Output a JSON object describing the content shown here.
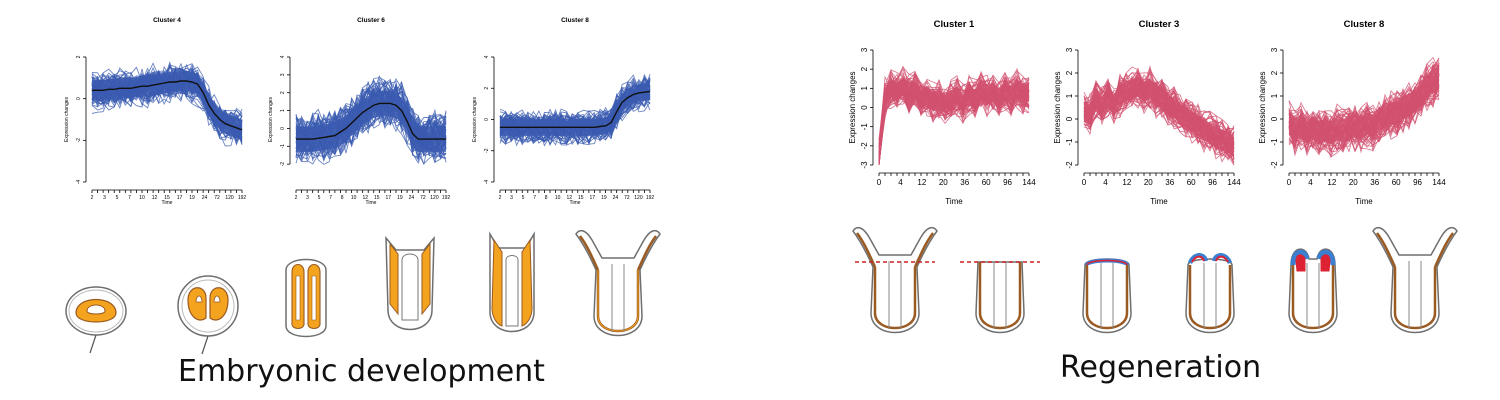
{
  "captions": {
    "left": "Embryonic development",
    "right": "Regeneration"
  },
  "colors": {
    "embryo_series": "#3a5bb0",
    "embryo_mean": "#111111",
    "regen_series": "#d1506f",
    "tissue_fill": "#f4a31e",
    "tissue_outline": "#9a5a22",
    "body_outline": "#6f6f6f",
    "cut_line": "#cc2222",
    "regrowth_blue": "#3a7fd0",
    "regrowth_red": "#dd2233"
  },
  "chart_data": [
    {
      "id": "embryo-cluster-4",
      "type": "line",
      "title": "Cluster 4",
      "xlabel": "Time",
      "ylabel": "Expression changes",
      "x": [
        "2",
        "3",
        "4",
        "5",
        "6",
        "7",
        "8",
        "9",
        "10",
        "11",
        "12",
        "13",
        "14",
        "15",
        "16",
        "17",
        "18",
        "19",
        "20",
        "22",
        "24",
        "48",
        "72",
        "96",
        "120",
        "144",
        "168",
        "192"
      ],
      "x_tick_labels": [
        "2",
        "3",
        "5",
        "7",
        "10",
        "12",
        "15",
        "17",
        "19",
        "24",
        "72",
        "120",
        "192"
      ],
      "yticks": [
        -4,
        -2,
        0,
        2
      ],
      "ylim": [
        -4,
        2
      ],
      "series": [
        {
          "values": [
            0.4,
            0.4,
            0.4,
            0.45,
            0.45,
            0.5,
            0.5,
            0.5,
            0.55,
            0.6,
            0.6,
            0.65,
            0.7,
            0.75,
            0.8,
            0.8,
            0.85,
            0.85,
            0.8,
            0.7,
            0.3,
            -0.3,
            -0.7,
            -1.0,
            -1.2,
            -1.3,
            -1.4,
            -1.5
          ]
        }
      ],
      "band_spread": 0.9
    },
    {
      "id": "embryo-cluster-6",
      "type": "line",
      "title": "Cluster 6",
      "xlabel": "Time",
      "ylabel": "Expression changes",
      "x": [
        "2",
        "3",
        "4",
        "5",
        "6",
        "7",
        "8",
        "9",
        "10",
        "11",
        "12",
        "13",
        "14",
        "15",
        "16",
        "17",
        "18",
        "19",
        "20",
        "22",
        "24",
        "48",
        "72",
        "96",
        "120",
        "144",
        "168",
        "192"
      ],
      "x_tick_labels": [
        "2",
        "3",
        "5",
        "7",
        "8",
        "10",
        "12",
        "15",
        "17",
        "19",
        "24",
        "72",
        "120",
        "192"
      ],
      "yticks": [
        -2,
        -1,
        0,
        1,
        2,
        3,
        4
      ],
      "ylim": [
        -3,
        4
      ],
      "series": [
        {
          "values": [
            -0.6,
            -0.6,
            -0.6,
            -0.6,
            -0.55,
            -0.5,
            -0.45,
            -0.4,
            -0.2,
            0.0,
            0.3,
            0.6,
            0.9,
            1.1,
            1.3,
            1.4,
            1.4,
            1.4,
            1.3,
            1.0,
            0.4,
            -0.3,
            -0.6,
            -0.6,
            -0.6,
            -0.6,
            -0.6,
            -0.6
          ]
        }
      ],
      "band_spread": 1.3
    },
    {
      "id": "embryo-cluster-8",
      "type": "line",
      "title": "Cluster 8",
      "xlabel": "Time",
      "ylabel": "Expression changes",
      "x": [
        "2",
        "3",
        "4",
        "5",
        "6",
        "7",
        "8",
        "9",
        "10",
        "11",
        "12",
        "13",
        "14",
        "15",
        "16",
        "17",
        "18",
        "19",
        "20",
        "22",
        "24",
        "48",
        "72",
        "96",
        "120",
        "144",
        "168",
        "192"
      ],
      "x_tick_labels": [
        "2",
        "3",
        "5",
        "7",
        "8",
        "10",
        "12",
        "15",
        "17",
        "19",
        "24",
        "72",
        "120",
        "192"
      ],
      "yticks": [
        -4,
        -2,
        0,
        2,
        4
      ],
      "ylim": [
        -4,
        4
      ],
      "series": [
        {
          "values": [
            -0.5,
            -0.5,
            -0.5,
            -0.5,
            -0.5,
            -0.5,
            -0.5,
            -0.5,
            -0.5,
            -0.5,
            -0.5,
            -0.5,
            -0.5,
            -0.5,
            -0.5,
            -0.5,
            -0.5,
            -0.5,
            -0.45,
            -0.4,
            -0.2,
            0.5,
            1.1,
            1.4,
            1.6,
            1.7,
            1.75,
            1.8
          ]
        }
      ],
      "band_spread": 1.0
    },
    {
      "id": "regen-cluster-1",
      "type": "line",
      "title": "Cluster 1",
      "xlabel": "Time",
      "ylabel": "Expression changes",
      "x": [
        0,
        2,
        4,
        6,
        8,
        10,
        12,
        14,
        16,
        18,
        20,
        24,
        28,
        32,
        36,
        40,
        48,
        54,
        60,
        72,
        84,
        96,
        108,
        120,
        132,
        144
      ],
      "x_tick_labels": [
        "0",
        "4",
        "12",
        "20",
        "36",
        "60",
        "96",
        "144"
      ],
      "yticks": [
        -3,
        -2,
        -1,
        0,
        1,
        2,
        3
      ],
      "ylim": [
        -3,
        3
      ],
      "series": [
        {
          "values": [
            -2.6,
            0.5,
            1.0,
            0.8,
            1.1,
            0.7,
            1.0,
            0.5,
            0.6,
            0.3,
            0.4,
            0.2,
            0.4,
            0.6,
            0.2,
            0.7,
            0.4,
            0.9,
            0.6,
            0.8,
            0.5,
            0.9,
            0.6,
            1.0,
            0.7,
            0.8
          ]
        }
      ],
      "band_spread": 0.9
    },
    {
      "id": "regen-cluster-3",
      "type": "line",
      "title": "Cluster 3",
      "xlabel": "Time",
      "ylabel": "Expression changes",
      "x": [
        0,
        2,
        4,
        6,
        8,
        10,
        12,
        14,
        16,
        18,
        20,
        24,
        28,
        32,
        36,
        40,
        48,
        54,
        60,
        72,
        84,
        96,
        108,
        120,
        132,
        144
      ],
      "x_tick_labels": [
        "0",
        "4",
        "12",
        "20",
        "36",
        "60",
        "96",
        "144"
      ],
      "yticks": [
        -2,
        -1,
        0,
        1,
        2,
        3
      ],
      "ylim": [
        -2,
        3
      ],
      "series": [
        {
          "values": [
            0.3,
            0.2,
            0.8,
            0.5,
            0.9,
            0.6,
            1.0,
            1.2,
            1.3,
            1.4,
            1.2,
            1.3,
            1.0,
            0.9,
            0.6,
            0.5,
            0.2,
            0.1,
            -0.1,
            -0.3,
            -0.5,
            -0.6,
            -0.8,
            -0.9,
            -1.0,
            -1.2
          ]
        }
      ],
      "band_spread": 0.8
    },
    {
      "id": "regen-cluster-8",
      "type": "line",
      "title": "Cluster 8",
      "xlabel": "Time",
      "ylabel": "Expression changes",
      "x": [
        0,
        2,
        4,
        6,
        8,
        10,
        12,
        14,
        16,
        18,
        20,
        24,
        28,
        32,
        36,
        40,
        48,
        54,
        60,
        72,
        84,
        96,
        108,
        120,
        132,
        144
      ],
      "x_tick_labels": [
        "0",
        "4",
        "12",
        "20",
        "36",
        "60",
        "96",
        "144"
      ],
      "yticks": [
        -2,
        -1,
        0,
        1,
        2,
        3
      ],
      "ylim": [
        -2,
        3
      ],
      "series": [
        {
          "values": [
            -0.2,
            -0.5,
            -0.3,
            -0.6,
            -0.4,
            -0.6,
            -0.5,
            -0.6,
            -0.4,
            -0.5,
            -0.4,
            -0.3,
            -0.4,
            -0.2,
            -0.3,
            0.0,
            0.1,
            0.2,
            0.3,
            0.5,
            0.6,
            0.8,
            1.0,
            1.4,
            1.6,
            1.8
          ]
        }
      ],
      "band_spread": 0.9
    }
  ]
}
